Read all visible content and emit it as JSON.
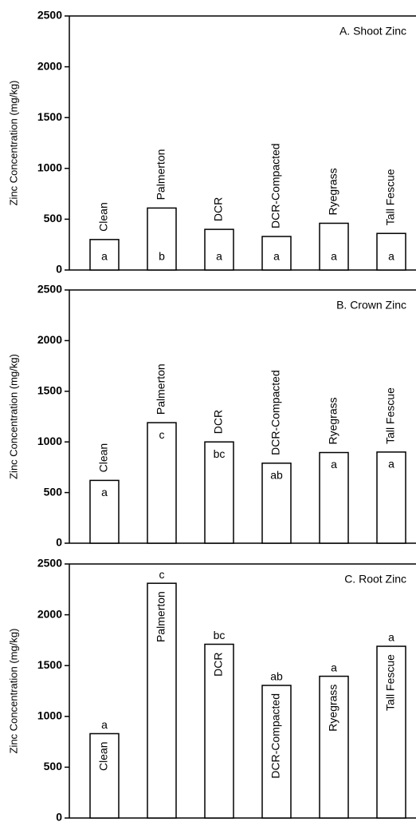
{
  "chart_data": [
    {
      "type": "bar",
      "title": "A.  Shoot Zinc",
      "y_label": "Zinc Concentration (mg/kg)",
      "categories": [
        "Clean",
        "Palmerton",
        "DCR",
        "DCR-Compacted",
        "Ryegrass",
        "Tall Fescue"
      ],
      "values": [
        300,
        610,
        400,
        330,
        460,
        360
      ],
      "annotations": [
        "a",
        "b",
        "a",
        "a",
        "a",
        "a"
      ],
      "ylim": [
        0,
        2500
      ],
      "yticks": [
        0,
        500,
        1000,
        1500,
        2000,
        2500
      ],
      "color": "#ffffff"
    },
    {
      "type": "bar",
      "title": "B.  Crown Zinc",
      "y_label": "Zinc Concentration (mg/kg)",
      "categories": [
        "Clean",
        "Palmerton",
        "DCR",
        "DCR-Compacted",
        "Ryegrass",
        "Tall Fescue"
      ],
      "values": [
        620,
        1190,
        1000,
        790,
        895,
        900
      ],
      "annotations": [
        "a",
        "c",
        "bc",
        "ab",
        "a",
        "a"
      ],
      "ylim": [
        0,
        2500
      ],
      "yticks": [
        0,
        500,
        1000,
        1500,
        2000,
        2500
      ],
      "color": "#ffffff"
    },
    {
      "type": "bar",
      "title": "C.  Root Zinc",
      "y_label": "Zinc Concentration (mg/kg)",
      "categories": [
        "Clean",
        "Palmerton",
        "DCR",
        "DCR-Compacted",
        "Ryegrass",
        "Tall Fescue"
      ],
      "values": [
        830,
        2310,
        1710,
        1305,
        1395,
        1690
      ],
      "annotations": [
        "a",
        "c",
        "bc",
        "ab",
        "a",
        "a"
      ],
      "ylim": [
        0,
        2500
      ],
      "yticks": [
        0,
        500,
        1000,
        1500,
        2000,
        2500
      ],
      "color": "#ffffff"
    }
  ]
}
